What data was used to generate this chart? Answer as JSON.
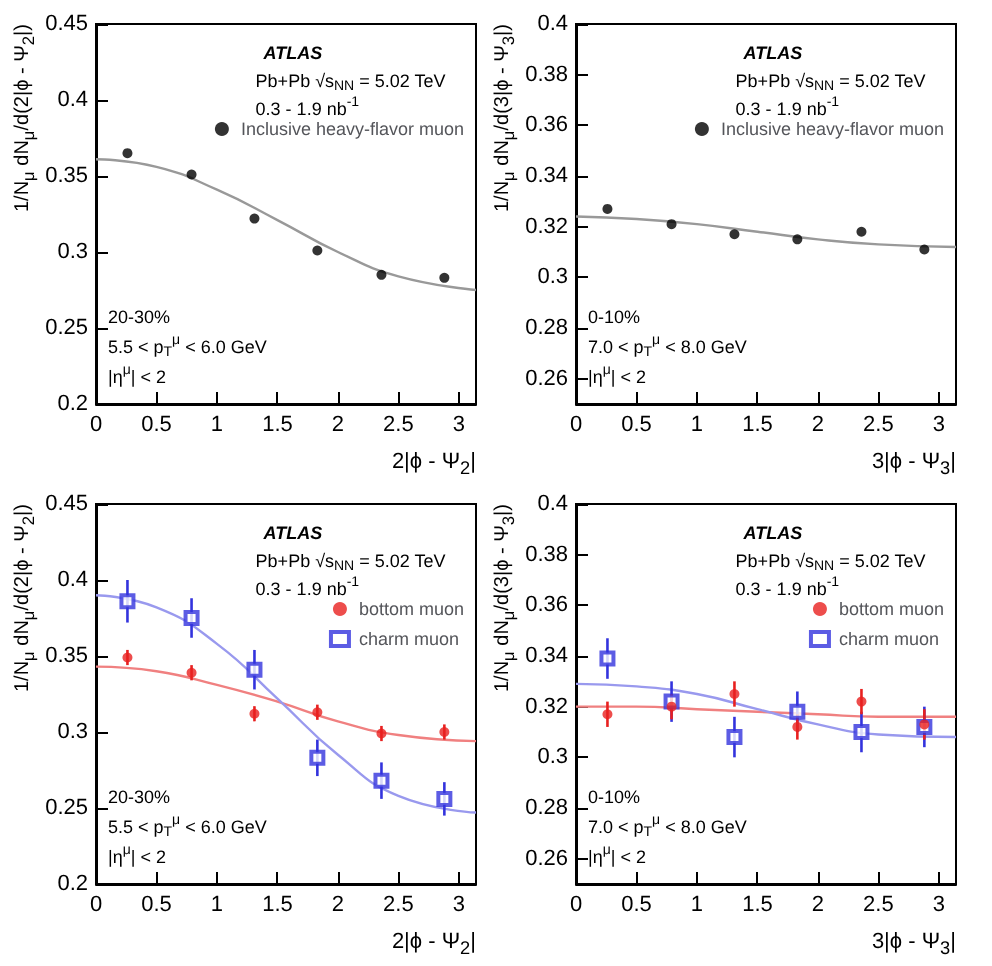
{
  "chart_data": [
    {
      "type": "scatter",
      "xlabel": "2|ϕ - Ψ$_{2}$|",
      "ylabel": "1/N$_{μ}$ dN$_{μ}$/d(2|ϕ - Ψ$_{2}$|)",
      "xlim": [
        0,
        3.1416
      ],
      "xticks": [
        0,
        0.5,
        1,
        1.5,
        2,
        2.5,
        3
      ],
      "ylim": [
        0.2,
        0.45
      ],
      "yticks": [
        0.2,
        0.25,
        0.3,
        0.35,
        0.4,
        0.45
      ],
      "legend": "top right",
      "grid": false,
      "annotations": [
        "ATLAS",
        "Pb+Pb √s$_{NN}$ = 5.02 TeV",
        "0.3 - 1.9 nb$^{-1}$",
        "20-30%",
        "5.5 < p$_{T}$$^{μ}$ < 6.0 GeV",
        "|η$^{μ}$| < 2"
      ],
      "series": [
        {
          "name": "Inclusive heavy-flavor muon",
          "color": "#000000",
          "marker": "circle",
          "x": [
            0.26,
            0.79,
            1.31,
            1.83,
            2.36,
            2.88
          ],
          "values": [
            0.365,
            0.351,
            0.322,
            0.301,
            0.285,
            0.283
          ]
        },
        {
          "type": "line",
          "color": "#999999",
          "x": [
            0,
            0.5,
            1,
            1.5,
            2,
            2.5,
            3.1416
          ],
          "values": [
            0.361,
            0.356,
            0.341,
            0.321,
            0.3,
            0.284,
            0.275
          ]
        }
      ]
    },
    {
      "type": "scatter",
      "xlabel": "3|ϕ - Ψ$_{3}$|",
      "ylabel": "1/N$_{μ}$ dN$_{μ}$/d(3|ϕ - Ψ$_{3}$|)",
      "xlim": [
        0,
        3.1416
      ],
      "xticks": [
        0,
        0.5,
        1,
        1.5,
        2,
        2.5,
        3
      ],
      "ylim": [
        0.25,
        0.4
      ],
      "yticks": [
        0.26,
        0.28,
        0.3,
        0.32,
        0.34,
        0.36,
        0.38,
        0.4
      ],
      "legend": "top right",
      "grid": false,
      "annotations": [
        "ATLAS",
        "Pb+Pb √s$_{NN}$ = 5.02 TeV",
        "0.3 - 1.9 nb$^{-1}$",
        "0-10%",
        "7.0 < p$_{T}$$^{μ}$ < 8.0 GeV",
        "|η$^{μ}$| < 2"
      ],
      "series": [
        {
          "name": "Inclusive heavy-flavor muon",
          "color": "#000000",
          "marker": "circle",
          "x": [
            0.26,
            0.79,
            1.31,
            1.83,
            2.36,
            2.88
          ],
          "values": [
            0.327,
            0.321,
            0.317,
            0.315,
            0.318,
            0.311
          ]
        },
        {
          "type": "line",
          "color": "#999999",
          "x": [
            0,
            0.5,
            1,
            1.5,
            2,
            2.5,
            3.1416
          ],
          "values": [
            0.324,
            0.323,
            0.321,
            0.318,
            0.315,
            0.313,
            0.312
          ]
        }
      ]
    },
    {
      "type": "scatter",
      "xlabel": "2|ϕ - Ψ$_{2}$|",
      "ylabel": "1/N$_{μ}$ dN$_{μ}$/d(2|ϕ - Ψ$_{2}$|)",
      "xlim": [
        0,
        3.1416
      ],
      "xticks": [
        0,
        0.5,
        1,
        1.5,
        2,
        2.5,
        3
      ],
      "ylim": [
        0.2,
        0.45
      ],
      "yticks": [
        0.2,
        0.25,
        0.3,
        0.35,
        0.4,
        0.45
      ],
      "legend": "top right",
      "grid": false,
      "annotations": [
        "ATLAS",
        "Pb+Pb √s$_{NN}$ = 5.02 TeV",
        "0.3 - 1.9 nb$^{-1}$",
        "20-30%",
        "5.5 < p$_{T}$$^{μ}$ < 6.0 GeV",
        "|η$^{μ}$| < 2"
      ],
      "series": [
        {
          "name": "bottom muon",
          "color": "#e8201f",
          "marker": "circle",
          "x": [
            0.26,
            0.79,
            1.31,
            1.83,
            2.36,
            2.88
          ],
          "values": [
            0.349,
            0.339,
            0.312,
            0.313,
            0.299,
            0.3
          ],
          "errors": [
            0.005,
            0.005,
            0.005,
            0.005,
            0.005,
            0.005
          ]
        },
        {
          "name": "charm muon",
          "color": "#3333dd",
          "marker": "square",
          "x": [
            0.26,
            0.79,
            1.31,
            1.83,
            2.36,
            2.88
          ],
          "values": [
            0.386,
            0.375,
            0.341,
            0.283,
            0.268,
            0.256
          ],
          "errors": [
            0.014,
            0.013,
            0.013,
            0.012,
            0.012,
            0.011
          ]
        },
        {
          "type": "line",
          "color": "#f08080",
          "x": [
            0,
            0.5,
            1,
            1.5,
            2,
            2.5,
            3.1416
          ],
          "values": [
            0.343,
            0.34,
            0.331,
            0.32,
            0.307,
            0.298,
            0.294
          ]
        },
        {
          "type": "line",
          "color": "#9999ee",
          "x": [
            0,
            0.5,
            1,
            1.5,
            2,
            2.5,
            3.1416
          ],
          "values": [
            0.39,
            0.382,
            0.358,
            0.322,
            0.285,
            0.258,
            0.247
          ]
        }
      ]
    },
    {
      "type": "scatter",
      "xlabel": "3|ϕ - Ψ$_{3}$|",
      "ylabel": "1/N$_{μ}$ dN$_{μ}$/d(3|ϕ - Ψ$_{3}$|)",
      "xlim": [
        0,
        3.1416
      ],
      "xticks": [
        0,
        0.5,
        1,
        1.5,
        2,
        2.5,
        3
      ],
      "ylim": [
        0.25,
        0.4
      ],
      "yticks": [
        0.26,
        0.28,
        0.3,
        0.32,
        0.34,
        0.36,
        0.38,
        0.4
      ],
      "legend": "top right",
      "grid": false,
      "annotations": [
        "ATLAS",
        "Pb+Pb √s$_{NN}$ = 5.02 TeV",
        "0.3 - 1.9 nb$^{-1}$",
        "0-10%",
        "7.0 < p$_{T}$$^{μ}$ < 8.0 GeV",
        "|η$^{μ}$| < 2"
      ],
      "series": [
        {
          "name": "bottom muon",
          "color": "#e8201f",
          "marker": "circle",
          "x": [
            0.26,
            0.79,
            1.31,
            1.83,
            2.36,
            2.88
          ],
          "values": [
            0.317,
            0.32,
            0.325,
            0.312,
            0.322,
            0.313
          ],
          "errors": [
            0.005,
            0.005,
            0.005,
            0.005,
            0.005,
            0.006
          ]
        },
        {
          "name": "charm muon",
          "color": "#3333dd",
          "marker": "square",
          "x": [
            0.26,
            0.79,
            1.31,
            1.83,
            2.36,
            2.88
          ],
          "values": [
            0.339,
            0.322,
            0.308,
            0.318,
            0.31,
            0.312
          ],
          "errors": [
            0.008,
            0.008,
            0.008,
            0.008,
            0.008,
            0.008
          ]
        },
        {
          "type": "line",
          "color": "#f08080",
          "x": [
            0,
            0.5,
            1,
            1.5,
            2,
            2.5,
            3.1416
          ],
          "values": [
            0.32,
            0.32,
            0.319,
            0.318,
            0.317,
            0.316,
            0.316
          ]
        },
        {
          "type": "line",
          "color": "#9999ee",
          "x": [
            0,
            0.5,
            1,
            1.5,
            2,
            2.5,
            3.1416
          ],
          "values": [
            0.329,
            0.328,
            0.325,
            0.319,
            0.313,
            0.309,
            0.308
          ]
        }
      ]
    }
  ]
}
